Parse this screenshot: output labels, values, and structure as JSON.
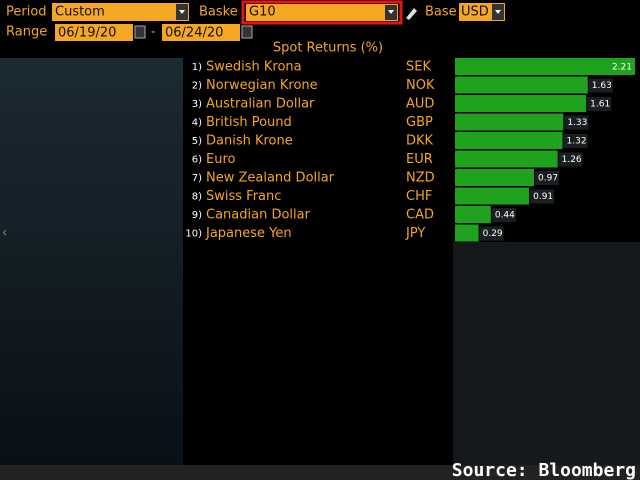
{
  "toolbar": {
    "period_label": "Period",
    "period_value": "Custom",
    "basket_label": "Baske",
    "basket_value": "G10",
    "base_label": "Base",
    "base_value": "USD",
    "range_label": "Range",
    "range_start": "06/19/20",
    "range_sep": "-",
    "range_end": "06/24/20"
  },
  "table": {
    "title": "Spot Returns (%)",
    "bar_color": "#1fa31f",
    "rows": [
      {
        "rank": "1)",
        "name": "Swedish Krona",
        "code": "SEK",
        "value": 2.21
      },
      {
        "rank": "2)",
        "name": "Norwegian Krone",
        "code": "NOK",
        "value": 1.63
      },
      {
        "rank": "3)",
        "name": "Australian Dollar",
        "code": "AUD",
        "value": 1.61
      },
      {
        "rank": "4)",
        "name": "British Pound",
        "code": "GBP",
        "value": 1.33
      },
      {
        "rank": "5)",
        "name": "Danish Krone",
        "code": "DKK",
        "value": 1.32
      },
      {
        "rank": "6)",
        "name": "Euro",
        "code": "EUR",
        "value": 1.26
      },
      {
        "rank": "7)",
        "name": "New Zealand Dollar",
        "code": "NZD",
        "value": 0.97
      },
      {
        "rank": "8)",
        "name": "Swiss Franc",
        "code": "CHF",
        "value": 0.91
      },
      {
        "rank": "9)",
        "name": "Canadian Dollar",
        "code": "CAD",
        "value": 0.44
      },
      {
        "rank": "10)",
        "name": "Japanese Yen",
        "code": "JPY",
        "value": 0.29
      }
    ]
  },
  "footer": {
    "source": "Source: Bloomberg"
  }
}
